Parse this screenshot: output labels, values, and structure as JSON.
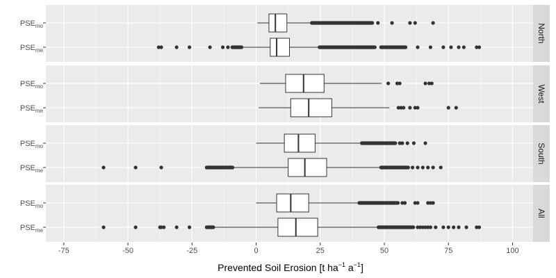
{
  "chart_data": {
    "type": "boxplot",
    "xlabel": {
      "prefix": "Prevented Soil Erosion [t ha",
      "sup1": "−1",
      "mid": " a",
      "sup2": "−1",
      "suffix": "]"
    },
    "xlim": [
      -82,
      108
    ],
    "xticks": [
      -75,
      -50,
      -25,
      0,
      25,
      50,
      75,
      100
    ],
    "xtick_labels": [
      "-75",
      "-50",
      "-25",
      "0",
      "25",
      "50",
      "75",
      "100"
    ],
    "series_label_base": "PSE",
    "panels": [
      {
        "label": "North",
        "boxes": [
          {
            "sub": "mo",
            "whisker_low": 0.5,
            "q1": 5,
            "median": 7.5,
            "q3": 12,
            "whisker_high": 21,
            "outlier_bands": [
              [
                21,
                46
              ]
            ],
            "outliers": [
              47.5,
              53,
              60,
              62,
              69
            ]
          },
          {
            "sub": "me",
            "whisker_low": -5,
            "q1": 5.5,
            "median": 8,
            "q3": 13,
            "whisker_high": 24,
            "outlier_bands": [
              [
                -10,
                -5
              ],
              [
                24,
                47
              ],
              [
                48,
                59
              ]
            ],
            "outliers": [
              -38,
              -37,
              -31,
              -26,
              -18,
              -13,
              -11,
              63,
              68,
              73,
              76,
              79,
              81,
              86,
              87
            ]
          }
        ]
      },
      {
        "label": "West",
        "boxes": [
          {
            "sub": "mo",
            "whisker_low": 1.5,
            "q1": 11.5,
            "median": 18.5,
            "q3": 26.5,
            "whisker_high": 49,
            "outlier_bands": [],
            "outliers": [
              51.5,
              55,
              56,
              66,
              67.5,
              68.5
            ]
          },
          {
            "sub": "me",
            "whisker_low": 1,
            "q1": 13.5,
            "median": 20.5,
            "q3": 29.5,
            "whisker_high": 52,
            "outlier_bands": [],
            "outliers": [
              55.5,
              56.5,
              57.5,
              60,
              62,
              63,
              75,
              78
            ]
          }
        ]
      },
      {
        "label": "South",
        "boxes": [
          {
            "sub": "mo",
            "whisker_low": 0,
            "q1": 11,
            "median": 16.5,
            "q3": 23,
            "whisker_high": 40.5,
            "outlier_bands": [
              [
                40.5,
                55
              ]
            ],
            "outliers": [
              56,
              57,
              59,
              61.5,
              66
            ]
          },
          {
            "sub": "me",
            "whisker_low": -8.5,
            "q1": 12.5,
            "median": 19,
            "q3": 27.5,
            "whisker_high": 48,
            "outlier_bands": [
              [
                -20,
                -8.5
              ],
              [
                48,
                60
              ]
            ],
            "outliers": [
              -59.5,
              -47,
              -37,
              61,
              63,
              65,
              67,
              69,
              72
            ]
          }
        ]
      },
      {
        "label": "All",
        "boxes": [
          {
            "sub": "mo",
            "whisker_low": 0,
            "q1": 8,
            "median": 13.5,
            "q3": 20.5,
            "whisker_high": 39.5,
            "outlier_bands": [
              [
                39.5,
                56
              ]
            ],
            "outliers": [
              57,
              58,
              62,
              63,
              67,
              68,
              69
            ]
          },
          {
            "sub": "me",
            "whisker_low": -16,
            "q1": 8.5,
            "median": 15.5,
            "q3": 24,
            "whisker_high": 47,
            "outlier_bands": [
              [
                -20,
                -16
              ],
              [
                47,
                62
              ]
            ],
            "outliers": [
              -59.5,
              -47,
              -37.5,
              -37,
              -36,
              -31,
              -26,
              63,
              64,
              65,
              66,
              67,
              68,
              70,
              73,
              75,
              77,
              79,
              82,
              86,
              87
            ]
          }
        ]
      }
    ],
    "grid": true,
    "colors": {
      "panel_bg": "#ebebeb",
      "grid_major": "#ffffff",
      "strip_bg": "#d9d9d9",
      "box_fill": "#ffffff",
      "line": "#333333",
      "outlier": "#333333"
    }
  }
}
